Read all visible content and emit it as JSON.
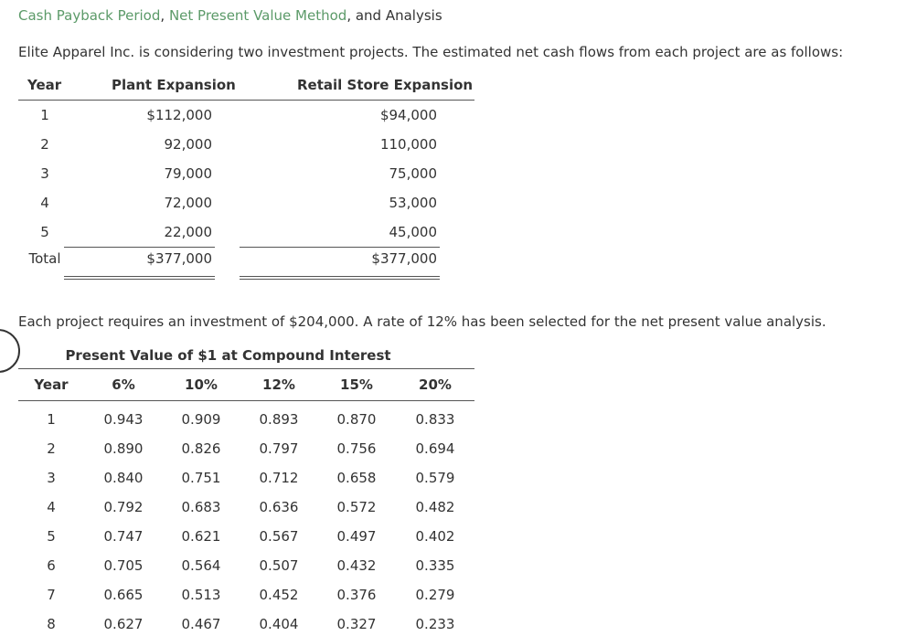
{
  "title": {
    "part1": "Cash Payback Period",
    "sep1": ", ",
    "part2": "Net Present Value Method",
    "sep2": ", and ",
    "part3": "Analysis"
  },
  "intro": "Elite Apparel Inc. is considering two investment projects. The estimated net cash flows from each project are as follows:",
  "cash_flows": {
    "headers": [
      "Year",
      "Plant Expansion",
      "Retail Store Expansion"
    ],
    "rows": [
      {
        "year": "1",
        "plant": "$112,000",
        "retail": "$94,000"
      },
      {
        "year": "2",
        "plant": "92,000",
        "retail": "110,000"
      },
      {
        "year": "3",
        "plant": "79,000",
        "retail": "75,000"
      },
      {
        "year": "4",
        "plant": "72,000",
        "retail": "53,000"
      },
      {
        "year": "5",
        "plant": "22,000",
        "retail": "45,000"
      }
    ],
    "total": {
      "label": "Total",
      "plant": "$377,000",
      "retail": "$377,000"
    }
  },
  "note": "Each project requires an investment of $204,000. A rate of 12% has been selected for the net present value analysis.",
  "pv_table": {
    "caption": "Present Value of $1 at Compound Interest",
    "headers": [
      "Year",
      "6%",
      "10%",
      "12%",
      "15%",
      "20%"
    ],
    "rows": [
      [
        "1",
        "0.943",
        "0.909",
        "0.893",
        "0.870",
        "0.833"
      ],
      [
        "2",
        "0.890",
        "0.826",
        "0.797",
        "0.756",
        "0.694"
      ],
      [
        "3",
        "0.840",
        "0.751",
        "0.712",
        "0.658",
        "0.579"
      ],
      [
        "4",
        "0.792",
        "0.683",
        "0.636",
        "0.572",
        "0.482"
      ],
      [
        "5",
        "0.747",
        "0.621",
        "0.567",
        "0.497",
        "0.402"
      ],
      [
        "6",
        "0.705",
        "0.564",
        "0.507",
        "0.432",
        "0.335"
      ],
      [
        "7",
        "0.665",
        "0.513",
        "0.452",
        "0.376",
        "0.279"
      ],
      [
        "8",
        "0.627",
        "0.467",
        "0.404",
        "0.327",
        "0.233"
      ]
    ]
  }
}
